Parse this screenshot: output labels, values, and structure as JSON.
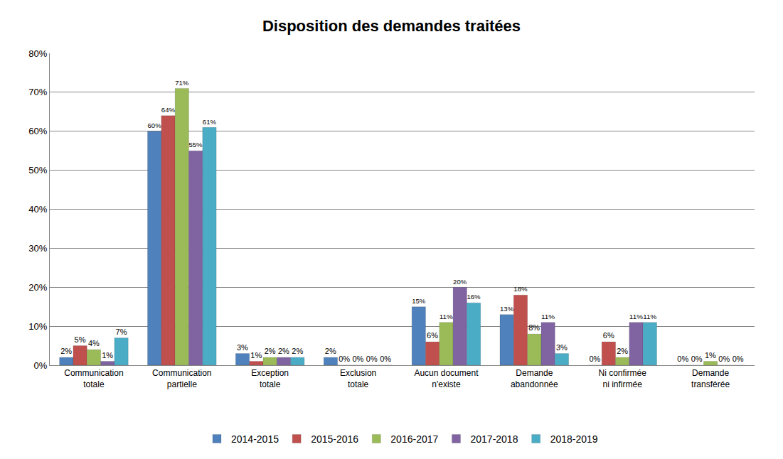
{
  "chart_data": {
    "type": "bar",
    "title": "Disposition des demandes traitées",
    "categories": [
      "Communication totale",
      "Communication partielle",
      "Exception totale",
      "Exclusion totale",
      "Aucun document n'existe",
      "Demande abandonnée",
      "Ni confirmée ni infirmée",
      "Demande transférée"
    ],
    "series": [
      {
        "name": "2014-2015",
        "color": "#4F81BD",
        "values": [
          2,
          60,
          3,
          2,
          15,
          13,
          0,
          0
        ],
        "value_labels": [
          "2%",
          "60%",
          "3%",
          "2%",
          "15%",
          "13%",
          "0%",
          "0%"
        ]
      },
      {
        "name": "2015-2016",
        "color": "#C0504D",
        "values": [
          5,
          64,
          1,
          0,
          6,
          18,
          6,
          0
        ],
        "value_labels": [
          "5%",
          "64%",
          "1%",
          "0%",
          "6%",
          "18%",
          "6%",
          "0%"
        ]
      },
      {
        "name": "2016-2017",
        "color": "#9BBB59",
        "values": [
          4,
          71,
          2,
          0,
          11,
          8,
          2,
          1
        ],
        "value_labels": [
          "4%",
          "71%",
          "2%",
          "0%",
          "11%",
          "8%",
          "2%",
          "1%"
        ]
      },
      {
        "name": "2017-2018",
        "color": "#8064A2",
        "values": [
          1,
          55,
          2,
          0,
          20,
          11,
          11,
          0
        ],
        "value_labels": [
          "1%",
          "55%",
          "2%",
          "0%",
          "20%",
          "11%",
          "11%",
          "0%"
        ]
      },
      {
        "name": "2018-2019",
        "color": "#4BACC6",
        "values": [
          7,
          61,
          2,
          0,
          16,
          3,
          11,
          0
        ],
        "value_labels": [
          "7%",
          "61%",
          "2%",
          "0%",
          "16%",
          "3%",
          "11%",
          "0%"
        ]
      }
    ],
    "ylim": [
      0,
      80
    ],
    "yticks": [
      {
        "value": 0,
        "label": "0%"
      },
      {
        "value": 10,
        "label": "10%"
      },
      {
        "value": 20,
        "label": "20%"
      },
      {
        "value": 30,
        "label": "30%"
      },
      {
        "value": 40,
        "label": "40%"
      },
      {
        "value": 50,
        "label": "50%"
      },
      {
        "value": 60,
        "label": "60%"
      },
      {
        "value": 70,
        "label": "70%"
      },
      {
        "value": 80,
        "label": "80%"
      }
    ],
    "grid": true,
    "legend": "bottom",
    "data_labels": true
  }
}
